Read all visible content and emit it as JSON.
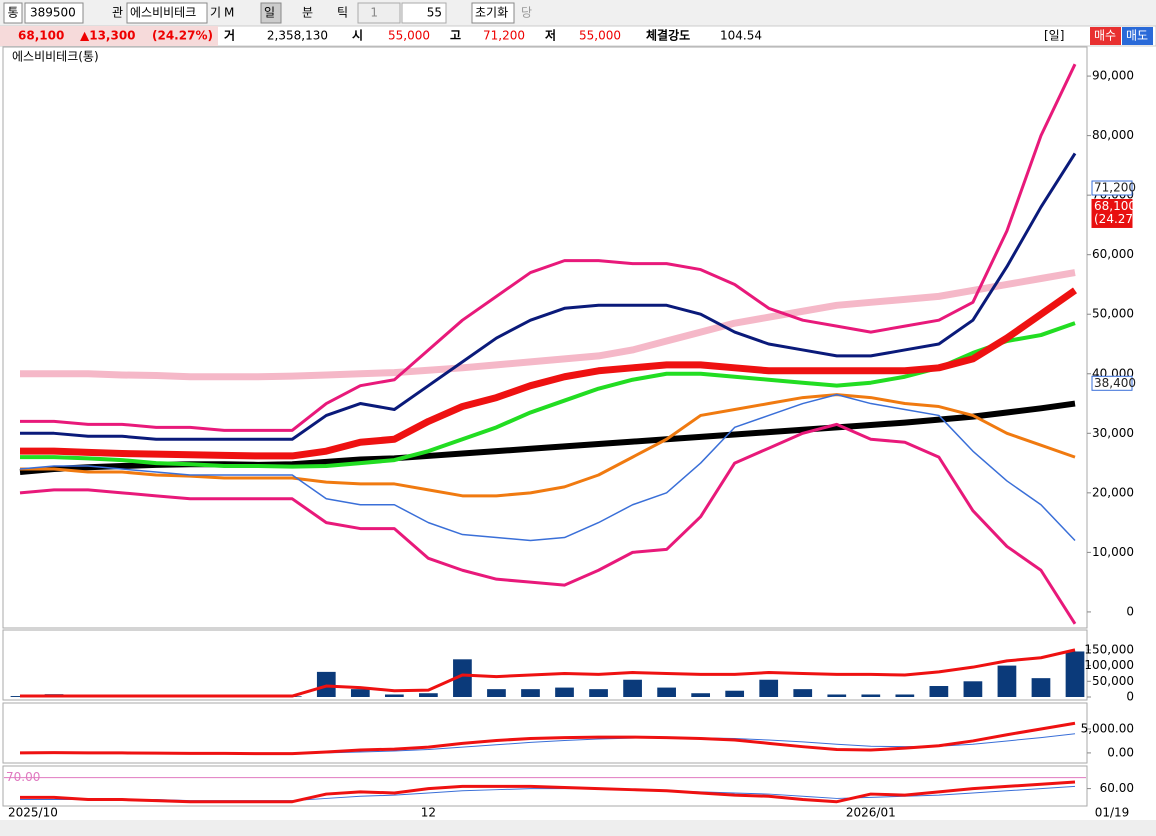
{
  "toolbar": [
    "통",
    "389500",
    "관",
    "에스비비테크",
    "기",
    "M",
    "일",
    "분",
    "틱",
    "1",
    "55",
    "초기화",
    "당"
  ],
  "quote": {
    "price": "68,100",
    "change": "▲13,300",
    "rate": "(24.27%)",
    "vol_label": "거",
    "volume": "2,358,130",
    "open_label": "시",
    "open": "55,000",
    "high_label": "고",
    "high": "71,200",
    "low_label": "저",
    "low": "55,000",
    "strength_label": "체결강도",
    "strength": "104.54",
    "period": "[일]",
    "buy": "매수",
    "sell": "매도"
  },
  "chart_data": [
    {
      "type": "line",
      "title": "에스비비테크(통)",
      "ylim": [
        -2700,
        92700
      ],
      "yticks": [
        0,
        {
          "value": 10000,
          "label": "10,000"
        },
        {
          "value": 20000,
          "label": "20,000"
        },
        {
          "value": 30000,
          "label": "30,000"
        },
        {
          "value": 40000,
          "label": "40,000"
        },
        {
          "value": 50000,
          "label": "50,000"
        },
        {
          "value": 60000,
          "label": "60,000"
        },
        {
          "value": 70000,
          "label": "70,000"
        },
        {
          "value": 80000,
          "label": "80,000"
        },
        {
          "value": 90000,
          "label": "90,000"
        }
      ],
      "price_tags": [
        {
          "value": 71200,
          "label": "71,200"
        },
        {
          "value": 68100,
          "label": "68,100"
        },
        {
          "value": 38400,
          "label": "38,400"
        }
      ],
      "change_tag": "(24.27%)",
      "series": [
        {
          "color": "#f5b8c8",
          "width": 7,
          "values": [
            40000,
            40000,
            40000,
            39800,
            39700,
            39500,
            39500,
            39500,
            39600,
            39800,
            40000,
            40200,
            40600,
            41000,
            41500,
            42000,
            42500,
            43000,
            44000,
            45500,
            47000,
            48500,
            49500,
            50500,
            51500,
            52000,
            52500,
            53000,
            54000,
            55000,
            56000,
            57000
          ]
        },
        {
          "color": "#e8197a",
          "width": 3,
          "values": [
            32000,
            32000,
            31500,
            31500,
            31000,
            31000,
            30500,
            30500,
            30500,
            35000,
            38000,
            39000,
            44000,
            49000,
            53000,
            57000,
            59000,
            59000,
            58500,
            58500,
            57500,
            55000,
            51000,
            49000,
            48000,
            47000,
            48000,
            49000,
            52000,
            64000,
            80000,
            92000
          ]
        },
        {
          "color": "#0a1a7a",
          "width": 3,
          "values": [
            30000,
            30000,
            29500,
            29500,
            29000,
            29000,
            29000,
            29000,
            29000,
            33000,
            35000,
            34000,
            38000,
            42000,
            46000,
            49000,
            51000,
            51500,
            51500,
            51500,
            50000,
            47000,
            45000,
            44000,
            43000,
            43000,
            44000,
            45000,
            49000,
            58000,
            68000,
            77000
          ]
        },
        {
          "color": "#000000",
          "width": 6,
          "values": [
            23500,
            24000,
            24300,
            24500,
            24700,
            24800,
            24800,
            24700,
            24800,
            25200,
            25600,
            25800,
            26200,
            26600,
            27000,
            27400,
            27800,
            28200,
            28600,
            29000,
            29400,
            29800,
            30200,
            30600,
            31000,
            31400,
            31800,
            32300,
            32800,
            33500,
            34200,
            35000
          ]
        },
        {
          "color": "#f07a10",
          "width": 3,
          "values": [
            24000,
            24000,
            23500,
            23500,
            23000,
            22800,
            22500,
            22500,
            22500,
            21800,
            21500,
            21500,
            20500,
            19500,
            19500,
            20000,
            21000,
            23000,
            26000,
            29000,
            33000,
            34000,
            35000,
            36000,
            36500,
            36000,
            35000,
            34500,
            33000,
            30000,
            28000,
            26000
          ]
        },
        {
          "color": "#22dd22",
          "width": 4,
          "values": [
            26000,
            26000,
            25800,
            25500,
            25000,
            24800,
            24500,
            24500,
            24400,
            24500,
            25000,
            25500,
            27000,
            29000,
            31000,
            33500,
            35500,
            37500,
            39000,
            40000,
            40000,
            39500,
            39000,
            38500,
            38000,
            38500,
            39500,
            41000,
            43500,
            45500,
            46500,
            48500
          ]
        },
        {
          "color": "#ee1111",
          "width": 7,
          "values": [
            27000,
            27000,
            26800,
            26600,
            26500,
            26400,
            26300,
            26200,
            26200,
            27000,
            28500,
            29000,
            32000,
            34500,
            36000,
            38000,
            39500,
            40500,
            41000,
            41500,
            41500,
            41000,
            40500,
            40500,
            40500,
            40500,
            40500,
            41000,
            42500,
            46000,
            50000,
            54000
          ]
        },
        {
          "color": "#3a6fd8",
          "width": 1.5,
          "values": [
            24000,
            24500,
            24500,
            24000,
            23500,
            23000,
            23000,
            23000,
            23000,
            19000,
            18000,
            18000,
            15000,
            13000,
            12500,
            12000,
            12500,
            15000,
            18000,
            20000,
            25000,
            31000,
            33000,
            35000,
            36500,
            35000,
            34000,
            33000,
            27000,
            22000,
            18000,
            12000
          ]
        },
        {
          "color": "#e8197a",
          "width": 3,
          "values": [
            20000,
            20500,
            20500,
            20000,
            19500,
            19000,
            19000,
            19000,
            19000,
            15000,
            14000,
            14000,
            9000,
            7000,
            5500,
            5000,
            4500,
            7000,
            10000,
            10500,
            16000,
            25000,
            27500,
            30000,
            31500,
            29000,
            28500,
            26000,
            17000,
            11000,
            7000,
            -2000
          ]
        }
      ]
    },
    {
      "type": "combo",
      "ylim": [
        0,
        207000
      ],
      "yticks": [
        0,
        {
          "value": 50000,
          "label": "50,000"
        },
        {
          "value": 100000,
          "label": "100,000"
        },
        {
          "value": 150000,
          "label": "150,000"
        }
      ],
      "series": [
        {
          "type": "bar",
          "color": "#0b3a7a",
          "width": 1,
          "values": [
            3000,
            9000,
            2000,
            2000,
            2000,
            2000,
            2000,
            2000,
            2000,
            80000,
            25000,
            8000,
            12000,
            120000,
            25000,
            25000,
            30000,
            25000,
            55000,
            30000,
            12000,
            20000,
            55000,
            25000,
            8000,
            8000,
            8000,
            35000,
            50000,
            100000,
            60000,
            145000
          ]
        },
        {
          "type": "line",
          "color": "#ee1111",
          "width": 3,
          "values": [
            3000,
            3000,
            3000,
            3000,
            3000,
            3000,
            3000,
            3000,
            3000,
            35000,
            30000,
            20000,
            22000,
            70000,
            65000,
            70000,
            75000,
            72000,
            78000,
            75000,
            72000,
            72000,
            78000,
            75000,
            72000,
            72000,
            70000,
            80000,
            95000,
            115000,
            125000,
            150000
          ]
        }
      ]
    },
    {
      "type": "line",
      "ylim": [
        -1900,
        9800
      ],
      "yticks": [
        {
          "value": 0,
          "label": "0.00"
        },
        {
          "value": 5000,
          "label": "5,000.00"
        }
      ],
      "series": [
        {
          "color": "#3a6fd8",
          "width": 1,
          "values": [
            0,
            0,
            0,
            0,
            0,
            -50,
            -80,
            -100,
            -120,
            0,
            200,
            400,
            700,
            1200,
            1700,
            2200,
            2600,
            2900,
            3100,
            3200,
            3150,
            3000,
            2700,
            2300,
            1800,
            1400,
            1300,
            1400,
            1800,
            2500,
            3200,
            4000
          ]
        },
        {
          "color": "#ee1111",
          "width": 3,
          "values": [
            0,
            50,
            0,
            0,
            -50,
            -100,
            -100,
            -150,
            -150,
            200,
            600,
            800,
            1200,
            2000,
            2600,
            3000,
            3200,
            3300,
            3300,
            3200,
            3000,
            2700,
            2000,
            1300,
            700,
            600,
            1000,
            1500,
            2500,
            3800,
            5000,
            6200
          ]
        }
      ]
    },
    {
      "type": "line",
      "ylim": [
        45,
        77
      ],
      "yticks": [
        {
          "value": 60,
          "label": "60.00"
        }
      ],
      "ref_line": {
        "value": 70,
        "label": "70.00",
        "color": "#e07ac0"
      },
      "categories": [
        "2025/10",
        null,
        null,
        null,
        null,
        null,
        null,
        null,
        null,
        null,
        null,
        null,
        "12",
        null,
        null,
        null,
        null,
        null,
        null,
        null,
        null,
        null,
        null,
        null,
        null,
        "2026/01",
        null,
        null,
        null,
        null,
        null,
        null
      ],
      "last_date": "01/19",
      "series": [
        {
          "color": "#3a6fd8",
          "width": 1,
          "values": [
            50,
            50,
            50,
            50,
            50,
            49,
            49,
            49,
            49,
            51,
            53,
            54,
            56,
            58,
            59,
            60,
            60,
            60,
            59,
            58,
            57,
            56,
            55,
            53,
            51,
            52,
            53,
            54,
            56,
            58,
            60,
            62
          ]
        },
        {
          "color": "#ee1111",
          "width": 3,
          "values": [
            52,
            52,
            50,
            50,
            49,
            48,
            48,
            48,
            48,
            55,
            57,
            56,
            60,
            62,
            62,
            62,
            61,
            60,
            59,
            58,
            56,
            54,
            53,
            50,
            48,
            55,
            54,
            57,
            60,
            62,
            64,
            66
          ]
        }
      ]
    }
  ]
}
